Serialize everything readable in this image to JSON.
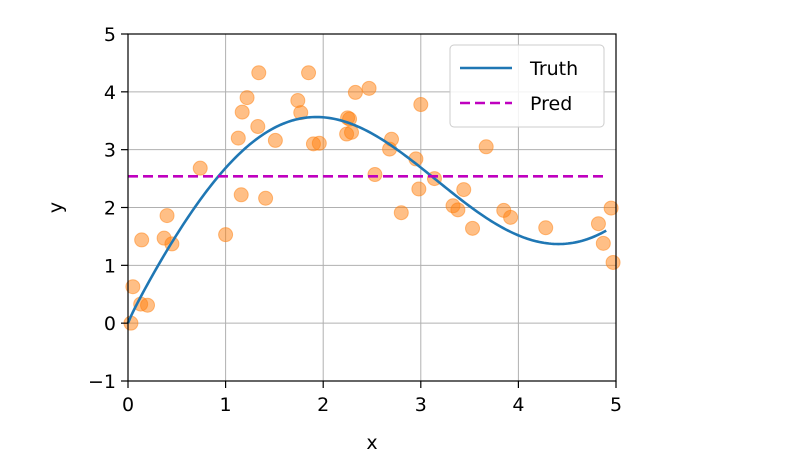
{
  "chart_data": {
    "type": "scatter",
    "title": "",
    "xlabel": "x",
    "ylabel": "y",
    "xlim": [
      0,
      5
    ],
    "ylim": [
      -1,
      5
    ],
    "xticks": [
      "0",
      "1",
      "2",
      "3",
      "4",
      "5"
    ],
    "yticks": [
      "−1",
      "0",
      "1",
      "2",
      "3",
      "4",
      "5"
    ],
    "grid": true,
    "legend_position": "top-right",
    "series": [
      {
        "name": "Truth",
        "kind": "line",
        "color": "#1f77b4",
        "style": "solid",
        "function": "2*sin(x) + x^0.8",
        "x_range": [
          0,
          4.9
        ]
      },
      {
        "name": "Pred",
        "kind": "line",
        "color": "#bf00bf",
        "style": "dashed",
        "x": [
          0,
          4.9
        ],
        "y": [
          2.54,
          2.54
        ]
      },
      {
        "kind": "scatter",
        "color": "#ff7f0e",
        "points": [
          [
            0.03,
            0.0
          ],
          [
            0.05,
            0.63
          ],
          [
            0.13,
            0.33
          ],
          [
            0.14,
            1.44
          ],
          [
            0.2,
            0.31
          ],
          [
            0.37,
            1.47
          ],
          [
            0.4,
            1.86
          ],
          [
            0.45,
            1.37
          ],
          [
            0.74,
            2.68
          ],
          [
            1.0,
            1.53
          ],
          [
            1.13,
            3.2
          ],
          [
            1.16,
            2.22
          ],
          [
            1.17,
            3.65
          ],
          [
            1.22,
            3.9
          ],
          [
            1.33,
            3.4
          ],
          [
            1.34,
            4.33
          ],
          [
            1.41,
            2.16
          ],
          [
            1.51,
            3.16
          ],
          [
            1.74,
            3.85
          ],
          [
            1.77,
            3.64
          ],
          [
            1.85,
            4.33
          ],
          [
            1.9,
            3.1
          ],
          [
            1.96,
            3.11
          ],
          [
            2.24,
            3.27
          ],
          [
            2.25,
            3.55
          ],
          [
            2.27,
            3.53
          ],
          [
            2.29,
            3.3
          ],
          [
            2.33,
            3.99
          ],
          [
            2.47,
            4.06
          ],
          [
            2.53,
            2.57
          ],
          [
            2.68,
            3.01
          ],
          [
            2.7,
            3.18
          ],
          [
            2.8,
            1.91
          ],
          [
            2.95,
            2.84
          ],
          [
            2.98,
            2.32
          ],
          [
            3.0,
            3.78
          ],
          [
            3.14,
            2.5
          ],
          [
            3.33,
            2.03
          ],
          [
            3.38,
            1.96
          ],
          [
            3.44,
            2.31
          ],
          [
            3.53,
            1.64
          ],
          [
            3.67,
            3.05
          ],
          [
            3.85,
            1.95
          ],
          [
            3.92,
            1.83
          ],
          [
            4.28,
            1.65
          ],
          [
            4.82,
            1.72
          ],
          [
            4.87,
            1.38
          ],
          [
            4.95,
            1.99
          ],
          [
            4.97,
            1.05
          ]
        ]
      }
    ]
  }
}
